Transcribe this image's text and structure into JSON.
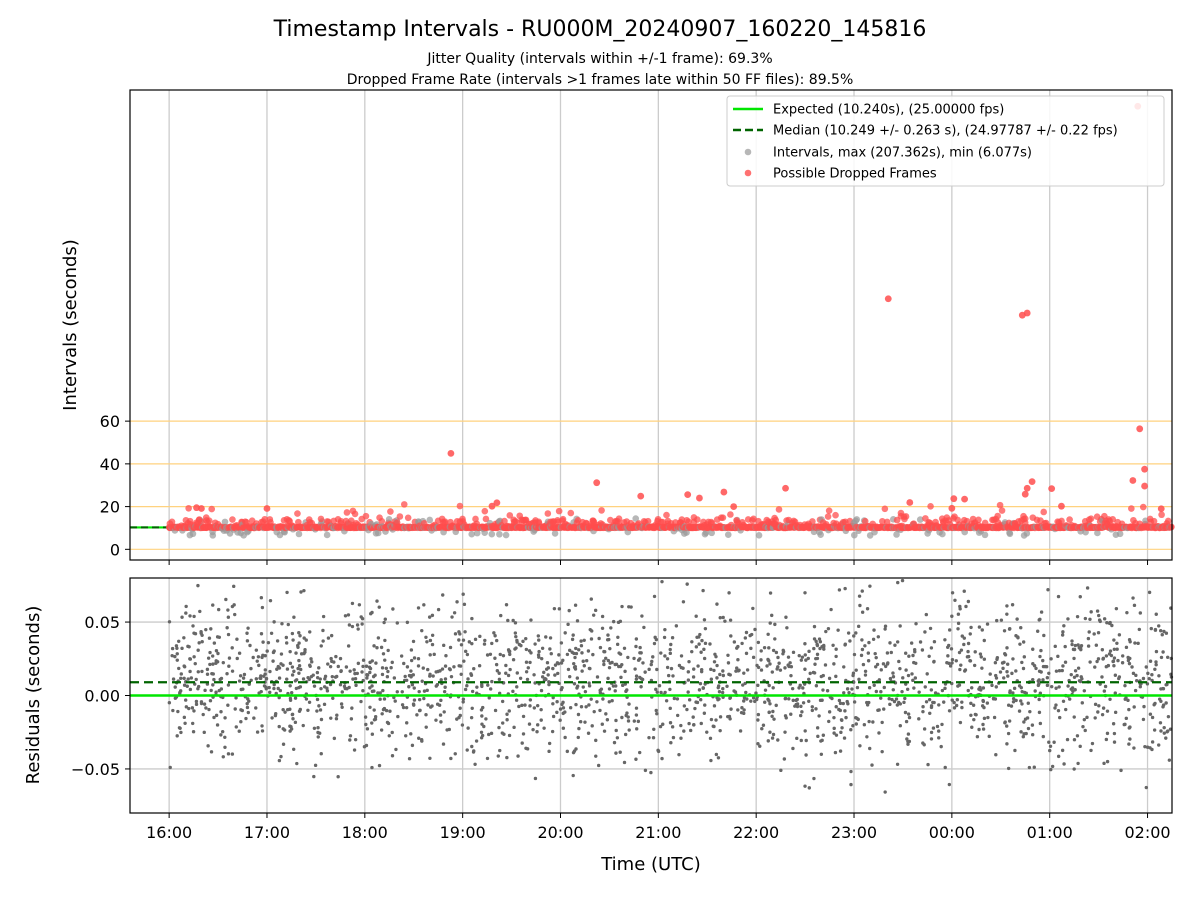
{
  "figure": {
    "title": "Timestamp Intervals - RU000M_20240907_160220_145816",
    "subtitle1": "Jitter Quality (intervals within +/-1 frame): 69.3%",
    "subtitle2": "Dropped Frame Rate (intervals >1 frames late within 50 FF files): 89.5%"
  },
  "chart_data": [
    {
      "type": "scatter",
      "panel": "top",
      "ylabel": "Intervals (seconds)",
      "xlabel": "",
      "x_axis": "time (hours since 16:00 UTC)",
      "xlim": [
        -0.4,
        10.25
      ],
      "ylim": [
        -5,
        215
      ],
      "yticks": [
        0,
        20,
        40,
        60
      ],
      "ytick_labels": [
        "0",
        "20",
        "40",
        "60"
      ],
      "reference_lines_y": [
        0,
        20,
        40,
        60
      ],
      "reference_line_color": "#FFD27F",
      "grid": "vertical",
      "legend_position": "upper right",
      "legend": [
        {
          "label": "Expected (10.240s), (25.00000 fps)",
          "style": "line",
          "color": "#00E600"
        },
        {
          "label": "Median (10.249 +/- 0.263 s), (24.97787 +/- 0.22 fps)",
          "style": "dashed",
          "color": "#006400"
        },
        {
          "label": "Intervals, max (207.362s), min (6.077s)",
          "style": "point",
          "color": "#999999"
        },
        {
          "label": "Possible Dropped Frames",
          "style": "point",
          "color": "#FF4D4D"
        }
      ],
      "expected_interval": 10.24,
      "median_interval": 10.249,
      "interval_range": {
        "max": 207.362,
        "min": 6.077
      },
      "outliers": [
        {
          "x": 9.9,
          "y": 207.4
        },
        {
          "x": 7.35,
          "y": 117.3
        },
        {
          "x": 8.72,
          "y": 109.6
        },
        {
          "x": 8.77,
          "y": 110.6
        },
        {
          "x": 9.92,
          "y": 56.4
        },
        {
          "x": 2.88,
          "y": 44.9
        },
        {
          "x": 9.97,
          "y": 37.5
        },
        {
          "x": 9.97,
          "y": 29.6
        },
        {
          "x": 4.37,
          "y": 31.2
        },
        {
          "x": 8.82,
          "y": 31.7
        },
        {
          "x": 8.77,
          "y": 28.6
        },
        {
          "x": 8.75,
          "y": 25.8
        },
        {
          "x": 9.02,
          "y": 28.4
        },
        {
          "x": 9.85,
          "y": 32.2
        },
        {
          "x": 0.33,
          "y": 19.1
        },
        {
          "x": 0.28,
          "y": 19.5
        },
        {
          "x": 1.0,
          "y": 19.1
        },
        {
          "x": 6.3,
          "y": 28.6
        },
        {
          "x": 3.35,
          "y": 21.8
        },
        {
          "x": 3.3,
          "y": 20.2
        },
        {
          "x": 4.82,
          "y": 24.9
        },
        {
          "x": 5.3,
          "y": 25.6
        },
        {
          "x": 5.42,
          "y": 24.0
        },
        {
          "x": 5.67,
          "y": 26.8
        },
        {
          "x": 5.77,
          "y": 20.0
        },
        {
          "x": 7.57,
          "y": 21.9
        },
        {
          "x": 8.02,
          "y": 23.7
        },
        {
          "x": 8.13,
          "y": 23.5
        },
        {
          "x": 8.0,
          "y": 19.2
        },
        {
          "x": 9.12,
          "y": 20.2
        },
        {
          "x": 10.14,
          "y": 19.0
        }
      ]
    },
    {
      "type": "scatter",
      "panel": "bottom",
      "ylabel": "Residuals (seconds)",
      "xlabel": "Time (UTC)",
      "xlim": [
        -0.4,
        10.25
      ],
      "ylim": [
        -0.08,
        0.08
      ],
      "yticks": [
        -0.05,
        0.0,
        0.05
      ],
      "ytick_labels": [
        "−0.05",
        "0.00",
        "0.05"
      ],
      "xticks": [
        0,
        1,
        2,
        3,
        4,
        5,
        6,
        7,
        8,
        9,
        10
      ],
      "xtick_labels": [
        "16:00",
        "17:00",
        "18:00",
        "19:00",
        "20:00",
        "21:00",
        "22:00",
        "23:00",
        "00:00",
        "01:00",
        "02:00"
      ],
      "grid": "both",
      "expected_residual": 0.0,
      "median_residual": 0.009,
      "residual_spread": "points spread between about −0.08 and 0.08, concentrated near 0.00–0.02",
      "series_colors": {
        "expected": "#00E600",
        "median": "#006400",
        "points": "#666666"
      }
    }
  ],
  "colors": {
    "expected": "#00E600",
    "median": "#006400",
    "interval_point": "#999999",
    "dropped_point": "#FF4D4D",
    "residual_point": "#666666",
    "grid": "#CCCCCC",
    "hline": "#FFD27F"
  }
}
